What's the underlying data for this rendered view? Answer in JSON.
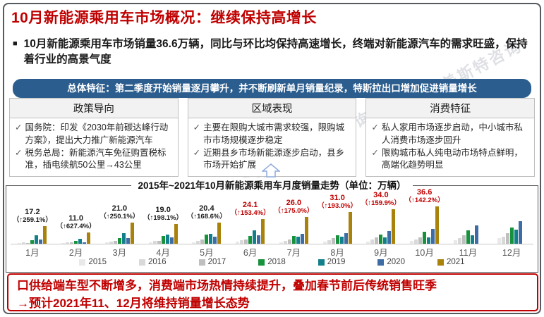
{
  "page": {
    "title": "10月新能源乘用车市场概况：继续保持高增长",
    "bullet_marker": "■",
    "intro": "10月新能源乘用车市场销量36.6万辆，同比与环比均保持高速增长，终端对新能源汽车的需求旺盛，保持着行业的高景气度",
    "banner": "总体特征：第二季度开始销量逐月攀升，并不断刷新单月销量纪录，特斯拉出口增加促进销量增长",
    "watermark": "GAST 盖斯特咨询",
    "watermark_short": "盖斯特咨询"
  },
  "columns": [
    {
      "title": "政策导向",
      "items": [
        "国务院：印发《2030年前碳达峰行动方案》，提出大力推广新能源汽车",
        "税务总局：新能源汽车免征购置税标准，插电续航50公里→43公里"
      ]
    },
    {
      "title": "区域表现",
      "items": [
        "主要在限购大城市需求较强，限购城市市场规模逐步稳定",
        "近期县乡市场新能源逐步启动，县乡市场开始扩展"
      ]
    },
    {
      "title": "消费特征",
      "items": [
        "私人家用市场逐步启动，中小城市私人消费市场逐步回升",
        "限购城市私人纯电动市场特点鲜明，高端化趋势明显"
      ]
    }
  ],
  "chart_data": {
    "type": "bar",
    "title": "2015年~2021年10月新能源乘用车月度销量走势（单位：万辆）",
    "unit": "万辆",
    "ylim": [
      0,
      40
    ],
    "grid": false,
    "legend_position": "bottom",
    "categories": [
      "1月",
      "2月",
      "3月",
      "4月",
      "5月",
      "6月",
      "7月",
      "8月",
      "9月",
      "10月",
      "11月",
      "12月"
    ],
    "series": [
      {
        "name": "2015",
        "color": "#E9E9E9",
        "values": [
          0.6,
          0.6,
          1.1,
          1.3,
          1.6,
          1.8,
          1.6,
          1.8,
          2.2,
          2.6,
          3.6,
          5.2
        ]
      },
      {
        "name": "2016",
        "color": "#D9D9D9",
        "values": [
          1.4,
          1.1,
          2.2,
          2.6,
          3.1,
          3.3,
          3.0,
          3.5,
          4.2,
          4.3,
          5.6,
          7.2
        ]
      },
      {
        "name": "2017",
        "color": "#BFBFBF",
        "values": [
          0.6,
          1.7,
          2.7,
          3.0,
          3.8,
          4.2,
          4.4,
          5.3,
          5.9,
          6.5,
          8.0,
          10.2
        ]
      },
      {
        "name": "2018",
        "color": "#17913B",
        "values": [
          3.3,
          2.9,
          5.6,
          7.3,
          9.2,
          7.3,
          7.4,
          8.5,
          9.2,
          11.9,
          13.0,
          16.0
        ]
      },
      {
        "name": "2019",
        "color": "#12808A",
        "values": [
          8.5,
          5.1,
          10.4,
          9.1,
          9.7,
          13.4,
          6.7,
          6.7,
          6.2,
          6.3,
          8.0,
          13.7
        ]
      },
      {
        "name": "2020",
        "color": "#3E6CA5",
        "values": [
          4.3,
          1.5,
          5.6,
          6.5,
          7.0,
          8.6,
          9.8,
          10.0,
          12.5,
          14.4,
          18.0,
          22.3
        ]
      },
      {
        "name": "2021",
        "color": "#A9820C",
        "values": [
          17.2,
          11.0,
          21.0,
          19.0,
          20.4,
          24.1,
          26.0,
          31.0,
          34.0,
          36.6,
          null,
          null
        ]
      }
    ],
    "data_labels": [
      {
        "value": "17.2",
        "growth": "（↑259.1%）",
        "color": "#1a1a1a"
      },
      {
        "value": "11.0",
        "growth": "（↑627.4%）",
        "color": "#1a1a1a"
      },
      {
        "value": "21.0",
        "growth": "（↑250.1%）",
        "color": "#1a1a1a"
      },
      {
        "value": "19.0",
        "growth": "（↑198.1%）",
        "color": "#1a1a1a"
      },
      {
        "value": "20.4",
        "growth": "（↑168.6%）",
        "color": "#1a1a1a"
      },
      {
        "value": "24.1",
        "growth": "（↑153.4%）",
        "color": "#C00000"
      },
      {
        "value": "26.0",
        "growth": "（↑175.0%）",
        "color": "#C00000"
      },
      {
        "value": "31.0",
        "growth": "（↑193.0%）",
        "color": "#C00000"
      },
      {
        "value": "34.0",
        "growth": "（↑159.9%）",
        "color": "#C00000"
      },
      {
        "value": "36.6",
        "growth": "（↑142.2%）",
        "color": "#C00000"
      },
      null,
      null
    ]
  },
  "conclusion": {
    "line1": "口供给端车型不断增多，消费端市场热情持续提升，叠加春节前后传统销售旺季",
    "line2": "→预计2021年11、12月将维持销量增长态势"
  },
  "colors": {
    "accent_red": "#C00000",
    "banner_blue": "#2B5D8E"
  }
}
